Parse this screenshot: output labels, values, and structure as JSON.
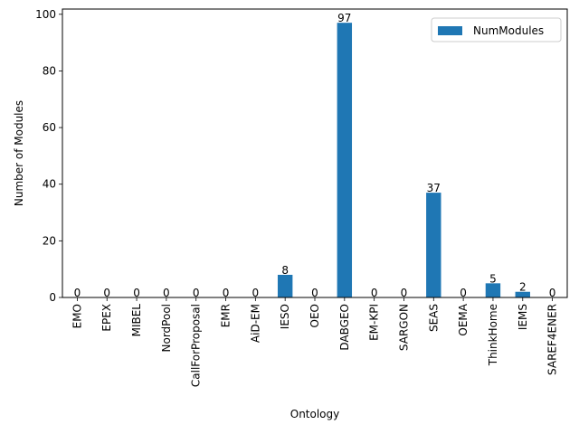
{
  "chart_data": {
    "type": "bar",
    "xlabel": "Ontology",
    "ylabel": "Number of Modules",
    "ylim": [
      0,
      101.85
    ],
    "yticks": [
      0,
      20,
      40,
      60,
      80,
      100
    ],
    "legend_position": "top-right",
    "grid": false,
    "categories": [
      "EMO",
      "EPEX",
      "MIBEL",
      "NordPool",
      "CallForProposal",
      "EMR",
      "AiD-EM",
      "IESO",
      "OEO",
      "DABGEO",
      "EM-KPI",
      "SARGON",
      "SEAS",
      "OEMA",
      "ThinkHome",
      "IEMS",
      "SAREF4ENER"
    ],
    "series": [
      {
        "name": "NumModules",
        "color": "#1f77b4",
        "values": [
          0,
          0,
          0,
          0,
          0,
          0,
          0,
          8,
          0,
          97,
          0,
          0,
          37,
          0,
          5,
          2,
          0
        ]
      }
    ]
  }
}
